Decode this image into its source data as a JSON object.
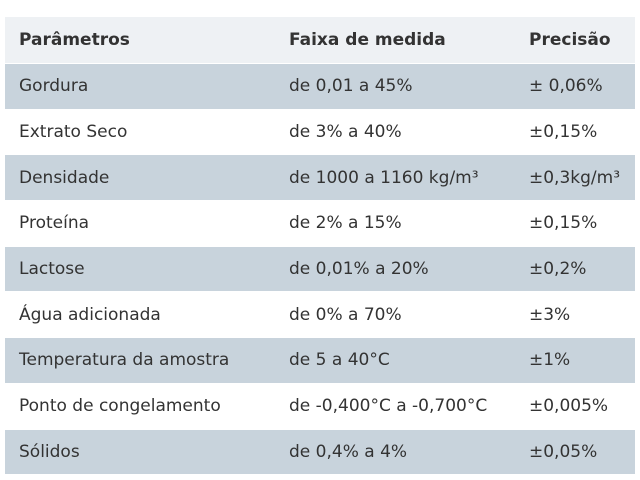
{
  "table": {
    "headers": [
      "Parâmetros",
      "Faixa de medida",
      "Precisão"
    ],
    "rows": [
      [
        "Gordura",
        "de 0,01 a 45%",
        "± 0,06%"
      ],
      [
        "Extrato Seco",
        "de 3% a 40%",
        "±0,15%"
      ],
      [
        "Densidade",
        "de 1000 a 1160 kg/m³",
        "±0,3kg/m³"
      ],
      [
        "Proteína",
        "de 2% a 15%",
        "±0,15%"
      ],
      [
        "Lactose",
        "de 0,01% a 20%",
        "±0,2%"
      ],
      [
        "Água adicionada",
        "de 0% a 70%",
        "±3%"
      ],
      [
        "Temperatura da amostra",
        "de 5 a 40°C",
        "±1%"
      ],
      [
        "Ponto de congelamento",
        "de -0,400°C a -0,700°C",
        "±0,005%"
      ],
      [
        "Sólidos",
        "de 0,4% a 4%",
        "±0,05%"
      ]
    ]
  },
  "colors": {
    "header_bg": "#eef1f4",
    "band_bg": "#c8d3dc",
    "text": "#333333"
  }
}
